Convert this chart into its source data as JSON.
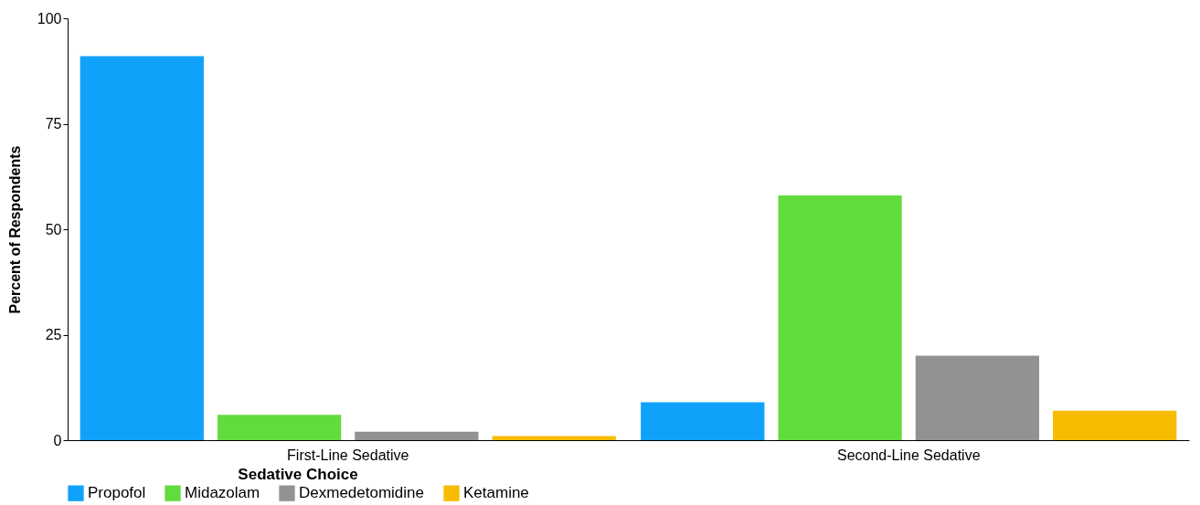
{
  "chart_data": {
    "type": "bar",
    "ylabel": "Percent of Respondents",
    "legend_title": "Sedative Choice",
    "legend": "bottom",
    "categories": [
      "First-Line Sedative",
      "Second-Line Sedative"
    ],
    "series": [
      {
        "name": "Propofol",
        "color": "#10a2fb",
        "values": [
          91,
          9
        ]
      },
      {
        "name": "Midazolam",
        "color": "#62dc3d",
        "values": [
          6,
          58
        ]
      },
      {
        "name": "Dexmedetomidine",
        "color": "#929292",
        "values": [
          2,
          20
        ]
      },
      {
        "name": "Ketamine",
        "color": "#f7bc00",
        "values": [
          1,
          7
        ]
      }
    ],
    "ylim": [
      0,
      100
    ],
    "yticks": [
      0,
      25,
      50,
      75,
      100
    ],
    "grid": false
  }
}
